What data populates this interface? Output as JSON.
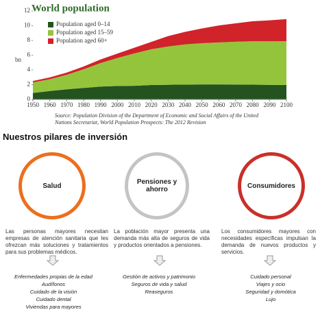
{
  "chart_data": {
    "type": "stacked-area",
    "title": "World population",
    "ylabel": "bn",
    "x": [
      1950,
      1960,
      1970,
      1980,
      1990,
      2000,
      2010,
      2020,
      2030,
      2040,
      2050,
      2060,
      2070,
      2080,
      2090,
      2100
    ],
    "xlim": [
      1950,
      2100
    ],
    "xticks": [
      1950,
      1960,
      1970,
      1980,
      1990,
      2000,
      2010,
      2020,
      2030,
      2040,
      2050,
      2060,
      2070,
      2080,
      2090,
      2100
    ],
    "ylim": [
      0,
      12
    ],
    "yticks": [
      0,
      2,
      4,
      6,
      8,
      10,
      12
    ],
    "series": [
      {
        "name": "Population aged 0–14",
        "color": "#24531f",
        "values": [
          0.87,
          1.14,
          1.37,
          1.56,
          1.74,
          1.83,
          1.85,
          1.95,
          1.99,
          2.01,
          2.03,
          2.03,
          2.02,
          2.0,
          1.98,
          1.95
        ]
      },
      {
        "name": "Population aged 15–59",
        "color": "#94c43c",
        "values": [
          1.43,
          1.6,
          1.97,
          2.53,
          3.19,
          3.79,
          4.4,
          4.85,
          5.2,
          5.45,
          5.6,
          5.7,
          5.8,
          5.9,
          5.9,
          5.95
        ]
      },
      {
        "name": "Population aged 60+",
        "color": "#d1232a",
        "values": [
          0.2,
          0.25,
          0.3,
          0.38,
          0.49,
          0.6,
          0.76,
          1.0,
          1.4,
          1.7,
          2.0,
          2.3,
          2.5,
          2.7,
          2.85,
          3.0
        ]
      }
    ],
    "source": "Source: Population Division of the Department of Economic and Social Affairs of the United Nations Secretariat, World Population Prospects: The 2012 Revision"
  },
  "infographic": {
    "heading": "Nuestros pilares de inversión",
    "pillars": [
      {
        "name": "Salud",
        "description": "Las personas mayores necesitan empresas de atención sanitaria que les ofrezcan más soluciones y tratamientos para sus problemas médicos.",
        "items": [
          "Enfermedades propias de la edad",
          "Audífonos",
          "Cuidado de la visión",
          "Cuidado dental",
          "Viviendas para mayores"
        ]
      },
      {
        "name": "Pensiones y ahorro",
        "description": "La población mayor presenta una demanda más alta de seguros de vida y productos orientados a pensiones.",
        "items": [
          "Gestión de activos y patrimonio",
          "Seguros de vida y salud",
          "Reaseguros"
        ]
      },
      {
        "name": "Consumidores",
        "description": "Los consumidores mayores con necesidades específicas impulsan la demanda de nuevos productos y servicios.",
        "items": [
          "Cuidado personal",
          "Viajes y ocio",
          "Seguridad y domótica",
          "Lujo"
        ]
      }
    ]
  }
}
